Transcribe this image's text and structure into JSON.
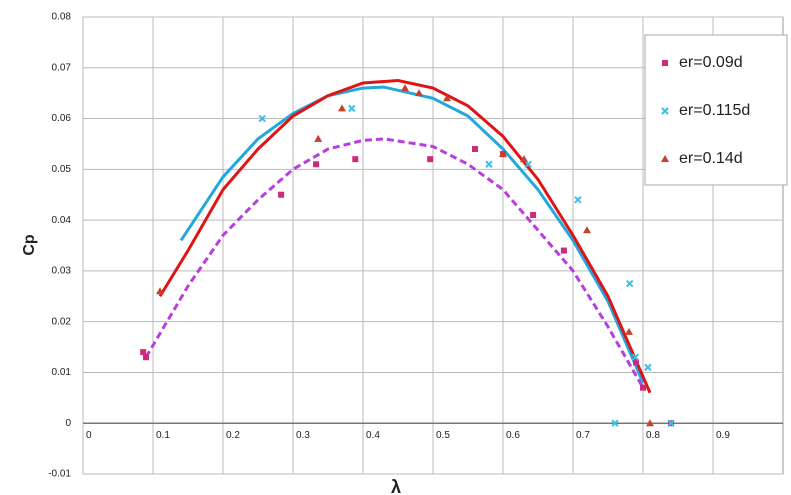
{
  "chart_data": {
    "type": "scatter",
    "x_label": "λ",
    "y_label": "Cp",
    "xlim": [
      0,
      1
    ],
    "ylim": [
      -0.01,
      0.08
    ],
    "xticks": [
      0,
      0.1,
      0.2,
      0.3,
      0.4,
      0.5,
      0.6,
      0.7,
      0.8,
      0.9
    ],
    "yticks": [
      -0.01,
      0,
      0.01,
      0.02,
      0.03,
      0.04,
      0.05,
      0.06,
      0.07,
      0.08
    ],
    "grid": true,
    "legend": "upper right",
    "series": [
      {
        "name": "er=0.09d",
        "color": "#cc2a7a",
        "marker": "square",
        "line_color": "#b83ee0",
        "line_style": "dashed",
        "x": [
          0.086,
          0.09,
          0.283,
          0.333,
          0.389,
          0.496,
          0.56,
          0.6,
          0.643,
          0.687,
          0.79,
          0.8,
          0.84
        ],
        "values": [
          0.014,
          0.013,
          0.045,
          0.051,
          0.052,
          0.052,
          0.054,
          0.053,
          0.041,
          0.034,
          0.012,
          0.007,
          0.0
        ],
        "trend_x": [
          0.09,
          0.15,
          0.2,
          0.25,
          0.3,
          0.35,
          0.4,
          0.43,
          0.5,
          0.55,
          0.6,
          0.65,
          0.7,
          0.75,
          0.8
        ],
        "trend_values": [
          0.013,
          0.027,
          0.037,
          0.044,
          0.05,
          0.054,
          0.0557,
          0.056,
          0.0545,
          0.051,
          0.046,
          0.038,
          0.03,
          0.019,
          0.007
        ]
      },
      {
        "name": "er=0.115d",
        "color": "#3bbfe8",
        "marker": "cross",
        "line_color": "#22a8dc",
        "line_style": "solid",
        "x": [
          0.256,
          0.384,
          0.58,
          0.636,
          0.707,
          0.76,
          0.781,
          0.789,
          0.807,
          0.84
        ],
        "values": [
          0.06,
          0.062,
          0.051,
          0.051,
          0.044,
          0.0,
          0.0275,
          0.013,
          0.011,
          0.0
        ],
        "trend_x": [
          0.14,
          0.2,
          0.25,
          0.3,
          0.35,
          0.4,
          0.43,
          0.5,
          0.55,
          0.6,
          0.65,
          0.7,
          0.75,
          0.8
        ],
        "trend_values": [
          0.036,
          0.0485,
          0.056,
          0.061,
          0.0645,
          0.066,
          0.0662,
          0.064,
          0.0605,
          0.054,
          0.046,
          0.036,
          0.024,
          0.008
        ]
      },
      {
        "name": "er=0.14d",
        "color": "#c8402a",
        "marker": "triangle",
        "line_color": "#e01414",
        "line_style": "solid",
        "x": [
          0.11,
          0.336,
          0.37,
          0.46,
          0.48,
          0.52,
          0.6,
          0.63,
          0.72,
          0.78,
          0.81
        ],
        "values": [
          0.026,
          0.056,
          0.062,
          0.066,
          0.065,
          0.064,
          0.053,
          0.052,
          0.038,
          0.018,
          0.0
        ],
        "trend_x": [
          0.11,
          0.15,
          0.2,
          0.25,
          0.3,
          0.35,
          0.4,
          0.45,
          0.5,
          0.55,
          0.6,
          0.65,
          0.7,
          0.75,
          0.81
        ],
        "trend_values": [
          0.025,
          0.034,
          0.046,
          0.054,
          0.0605,
          0.0645,
          0.067,
          0.0675,
          0.066,
          0.0625,
          0.0565,
          0.048,
          0.037,
          0.025,
          0.006
        ]
      }
    ]
  }
}
